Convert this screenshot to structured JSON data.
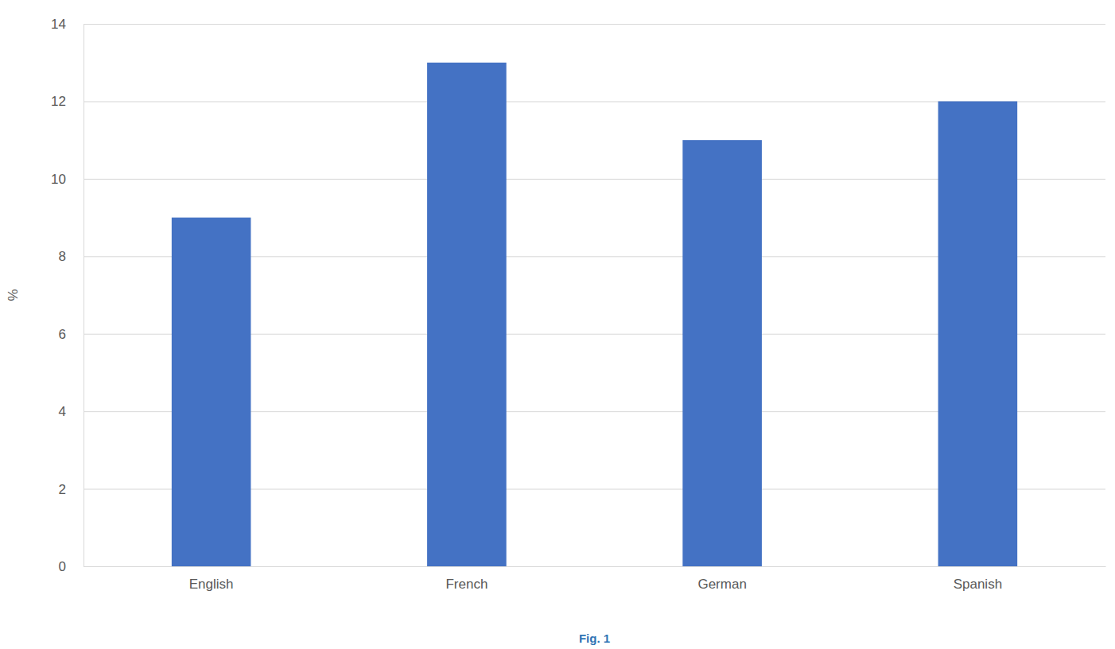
{
  "chart_data": {
    "type": "bar",
    "caption": "Fig. 1",
    "y_label": "%",
    "categories": [
      "English",
      "French",
      "German",
      "Spanish"
    ],
    "values": [
      9,
      13,
      11,
      12
    ],
    "color": "#4472c4",
    "ylim": [
      0,
      14
    ],
    "yticks": [
      0,
      2,
      4,
      6,
      8,
      10,
      12,
      14
    ],
    "grid": true
  }
}
